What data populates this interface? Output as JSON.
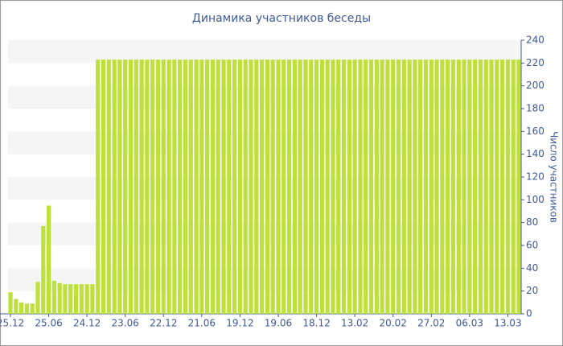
{
  "chart_data": {
    "type": "bar",
    "title": "Динамика участников беседы",
    "y_label": "Число участников",
    "categories": [
      "25.12",
      null,
      null,
      null,
      null,
      null,
      null,
      "25.06",
      null,
      null,
      null,
      null,
      null,
      null,
      "24.12",
      null,
      null,
      null,
      null,
      null,
      null,
      "23.06",
      null,
      null,
      null,
      null,
      null,
      null,
      "22.12",
      null,
      null,
      null,
      null,
      null,
      null,
      "21.06",
      null,
      null,
      null,
      null,
      null,
      null,
      "19.12",
      null,
      null,
      null,
      null,
      null,
      null,
      "19.06",
      null,
      null,
      null,
      null,
      null,
      null,
      "18.12",
      null,
      null,
      null,
      null,
      null,
      null,
      "13.02",
      null,
      null,
      null,
      null,
      null,
      null,
      "20.02",
      null,
      null,
      null,
      null,
      null,
      null,
      "27.02",
      null,
      null,
      null,
      null,
      null,
      null,
      "06.03",
      null,
      null,
      null,
      null,
      null,
      null,
      "13.03",
      null,
      null
    ],
    "values": [
      19,
      13,
      10,
      9,
      9,
      28,
      77,
      95,
      29,
      27,
      26,
      26,
      26,
      26,
      26,
      26,
      223,
      223,
      223,
      223,
      223,
      223,
      223,
      223,
      223,
      223,
      223,
      223,
      223,
      223,
      223,
      223,
      223,
      223,
      223,
      223,
      223,
      223,
      223,
      223,
      223,
      223,
      223,
      223,
      223,
      223,
      223,
      223,
      223,
      223,
      223,
      223,
      223,
      223,
      223,
      223,
      223,
      223,
      223,
      223,
      223,
      223,
      223,
      223,
      223,
      223,
      223,
      223,
      223,
      223,
      223,
      223,
      223,
      223,
      223,
      223,
      223,
      223,
      223,
      223,
      223,
      223,
      223,
      223,
      223,
      223,
      223,
      223,
      223,
      223,
      223,
      223,
      223,
      223
    ],
    "color": "#bde03a",
    "ylim": [
      0,
      240
    ],
    "yticks": [
      0,
      20,
      40,
      60,
      80,
      100,
      120,
      140,
      160,
      180,
      200,
      220,
      240
    ],
    "grid": "banded",
    "y_axis_side": "right"
  }
}
